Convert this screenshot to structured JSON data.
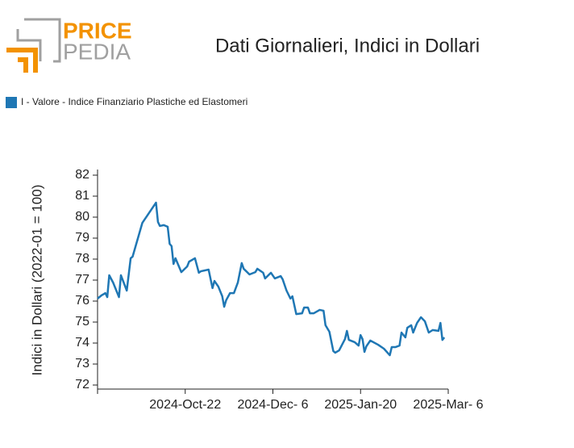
{
  "logo": {
    "price": "PRICE",
    "pedia": "PEDIA"
  },
  "chart_data": {
    "type": "line",
    "title": "Dati Giornalieri, Indici in Dollari",
    "y_label": "Indici in Dollari (2022-01 = 100)",
    "legend": "top-left",
    "x": [
      "2024-09-07",
      "2024-09-09",
      "2024-09-11",
      "2024-09-12",
      "2024-09-13",
      "2024-09-15",
      "2024-09-18",
      "2024-09-19",
      "2024-09-22",
      "2024-09-24",
      "2024-09-25",
      "2024-09-30",
      "2024-10-07",
      "2024-10-08",
      "2024-10-09",
      "2024-10-11",
      "2024-10-13",
      "2024-10-14",
      "2024-10-15",
      "2024-10-16",
      "2024-10-17",
      "2024-10-20",
      "2024-10-23",
      "2024-10-24",
      "2024-10-27",
      "2024-10-29",
      "2024-10-30",
      "2024-11-03",
      "2024-11-05",
      "2024-11-06",
      "2024-11-08",
      "2024-11-10",
      "2024-11-11",
      "2024-11-12",
      "2024-11-14",
      "2024-11-16",
      "2024-11-18",
      "2024-11-20",
      "2024-11-21",
      "2024-11-24",
      "2024-11-27",
      "2024-11-28",
      "2024-12-01",
      "2024-12-02",
      "2024-12-05",
      "2024-12-07",
      "2024-12-10",
      "2024-12-11",
      "2024-12-13",
      "2024-12-15",
      "2024-12-16",
      "2024-12-18",
      "2024-12-21",
      "2024-12-22",
      "2024-12-24",
      "2024-12-25",
      "2024-12-27",
      "2024-12-30",
      "2025-01-01",
      "2025-01-02",
      "2025-01-04",
      "2025-01-06",
      "2025-01-07",
      "2025-01-09",
      "2025-01-12",
      "2025-01-13",
      "2025-01-14",
      "2025-01-17",
      "2025-01-19",
      "2025-01-20",
      "2025-01-21",
      "2025-01-22",
      "2025-01-23",
      "2025-01-25",
      "2025-01-29",
      "2025-02-01",
      "2025-02-04",
      "2025-02-05",
      "2025-02-07",
      "2025-02-09",
      "2025-02-10",
      "2025-02-12",
      "2025-02-13",
      "2025-02-15",
      "2025-02-16",
      "2025-02-18",
      "2025-02-20",
      "2025-02-22",
      "2025-02-24",
      "2025-02-26",
      "2025-03-01",
      "2025-03-02",
      "2025-03-03",
      "2025-03-04"
    ],
    "series": [
      {
        "name": "I - Valore - Indice Finanziario Plastiche ed Elastomeri",
        "color": "#1f77b4",
        "values": [
          76.12,
          76.27,
          76.38,
          76.19,
          77.23,
          76.88,
          76.19,
          77.23,
          76.5,
          78.04,
          78.12,
          79.73,
          80.69,
          79.77,
          79.58,
          79.62,
          79.54,
          78.73,
          78.62,
          77.77,
          78.04,
          77.38,
          77.65,
          77.88,
          78.04,
          77.35,
          77.42,
          77.5,
          76.62,
          76.96,
          76.69,
          76.23,
          75.73,
          76.04,
          76.38,
          76.38,
          76.88,
          77.81,
          77.54,
          77.27,
          77.38,
          77.54,
          77.35,
          77.08,
          77.35,
          77.08,
          77.19,
          77.04,
          76.5,
          76.12,
          76.23,
          75.38,
          75.42,
          75.69,
          75.69,
          75.42,
          75.42,
          75.58,
          75.54,
          74.85,
          74.54,
          73.62,
          73.54,
          73.65,
          74.19,
          74.58,
          74.15,
          74.04,
          73.88,
          74.38,
          74.19,
          73.58,
          73.85,
          74.12,
          73.92,
          73.73,
          73.42,
          73.81,
          73.81,
          73.88,
          74.5,
          74.27,
          74.73,
          74.85,
          74.5,
          74.96,
          75.23,
          75.04,
          74.5,
          74.62,
          74.58,
          74.96,
          74.15,
          74.27
        ]
      }
    ],
    "xlim": [
      "2024-09-07",
      "2025-03-06"
    ],
    "xticks": [
      {
        "value": "2024-10-22",
        "label": "2024-Oct-22"
      },
      {
        "value": "2024-12-06",
        "label": "2024-Dec- 6"
      },
      {
        "value": "2025-01-20",
        "label": "2025-Jan-20"
      },
      {
        "value": "2025-03-06",
        "label": "2025-Mar- 6"
      }
    ],
    "ylim": [
      72,
      82
    ],
    "yticks": [
      72,
      73,
      74,
      75,
      76,
      77,
      78,
      79,
      80,
      81,
      82
    ],
    "grid": false
  }
}
